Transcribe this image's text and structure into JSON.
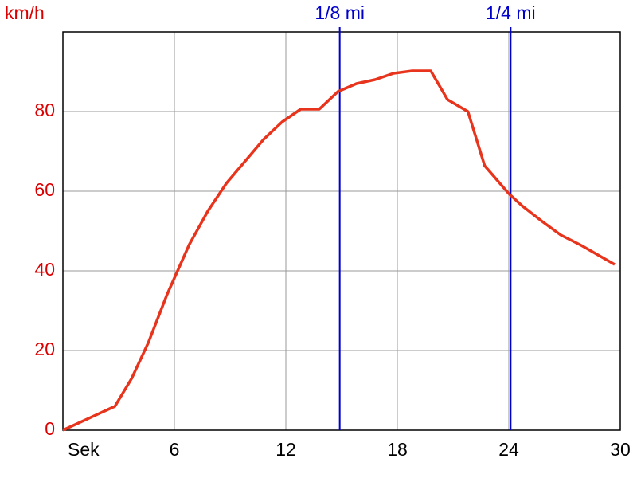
{
  "chart_data": {
    "type": "line",
    "y_label": "km/h",
    "x": [
      0,
      2.8,
      3.7,
      4.6,
      5.6,
      6.8,
      7.8,
      8.8,
      10.8,
      11.8,
      12.8,
      13.8,
      14.8,
      15.8,
      16.8,
      17.8,
      18.8,
      19.8,
      20.7,
      21.8,
      22.7,
      24.0,
      24.7,
      25.8,
      26.8,
      27.9,
      28.8,
      29.7
    ],
    "series": [
      {
        "name": "km/h",
        "color": "#e8341c",
        "values": [
          0,
          6,
          13,
          22,
          34,
          46.6,
          55,
          62,
          73,
          77.4,
          80.6,
          80.6,
          85,
          87,
          88,
          89.6,
          90.2,
          90.2,
          83,
          80,
          66.4,
          59.4,
          56.4,
          52.4,
          49,
          46.4,
          44,
          41.6
        ]
      }
    ],
    "xlim": [
      0,
      30
    ],
    "xticks": [
      {
        "value": 0,
        "label": "Sek"
      },
      6,
      12,
      18,
      24,
      30
    ],
    "ylim": [
      0,
      100
    ],
    "yticks": [
      0,
      20,
      40,
      60,
      80
    ],
    "grid": true,
    "markers": [
      {
        "label": "1/8 mi",
        "x": 14.9,
        "color": "#0000cc"
      },
      {
        "label": "1/4 mi",
        "x": 24.1,
        "color": "#0000cc"
      }
    ],
    "tick_color": "#dd0000"
  }
}
